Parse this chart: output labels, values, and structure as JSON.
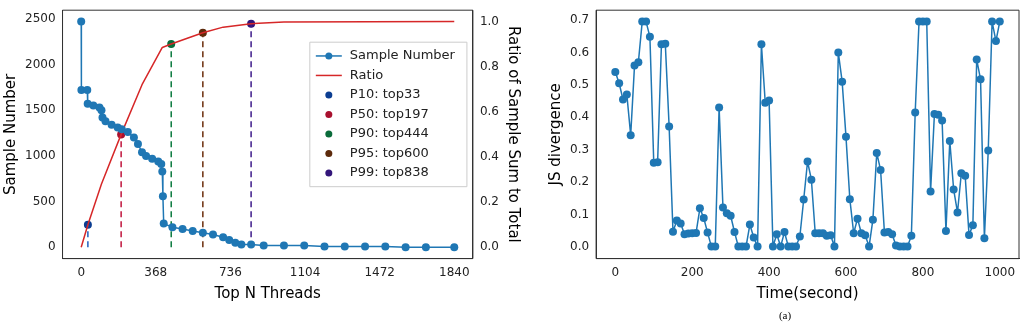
{
  "chart_data": [
    {
      "type": "line",
      "xlabel": "Top N Threads",
      "ylabel": "Sample Number",
      "y2label": "Ratio of Sample Sum to Total",
      "xlim": [
        -92,
        1932
      ],
      "xticks": [
        0,
        368,
        736,
        1104,
        1472,
        1840
      ],
      "ylim": [
        -123,
        2593
      ],
      "yticks": [
        0,
        500,
        1000,
        1500,
        2000,
        2500
      ],
      "y2lim": [
        -0.05,
        1.05
      ],
      "y2ticks": [
        {
          "value": 0,
          "label": "0.0"
        },
        0.2,
        0.4,
        0.6,
        0.8,
        {
          "value": 1,
          "label": "1.0"
        }
      ],
      "grid": false,
      "legend": "top right",
      "series": [
        {
          "name": "Sample Number",
          "color": "#1f77b4",
          "marker": "circle",
          "x": [
            0,
            1,
            30,
            32,
            60,
            90,
            100,
            105,
            120,
            150,
            180,
            200,
            230,
            260,
            280,
            300,
            320,
            350,
            380,
            395,
            400,
            403,
            407,
            450,
            500,
            550,
            600,
            650,
            700,
            730,
            760,
            790,
            838,
            900,
            1000,
            1100,
            1200,
            1300,
            1400,
            1500,
            1600,
            1700,
            1840
          ],
          "values": [
            2470,
            1720,
            1720,
            1570,
            1550,
            1530,
            1500,
            1420,
            1380,
            1340,
            1310,
            1290,
            1260,
            1200,
            1130,
            1040,
            1000,
            970,
            940,
            910,
            830,
            560,
            260,
            220,
            200,
            180,
            160,
            140,
            110,
            80,
            50,
            30,
            30,
            20,
            20,
            20,
            10,
            10,
            10,
            10,
            0,
            0,
            0
          ]
        },
        {
          "name": "Ratio",
          "color": "#d62728",
          "marker": "none",
          "axis": "y2",
          "x": [
            0,
            33,
            100,
            197,
            300,
            400,
            444,
            520,
            600,
            700,
            838,
            1000,
            1840
          ],
          "values": [
            0,
            0.1,
            0.28,
            0.5,
            0.72,
            0.885,
            0.9,
            0.925,
            0.95,
            0.975,
            0.99,
            0.998,
            1
          ]
        },
        {
          "type": "line",
          "color": "#1f5fbf",
          "marker": "none",
          "line_style": "dashed",
          "axis": "y2",
          "x": [
            33,
            33
          ],
          "values": [
            0,
            0.1
          ]
        },
        {
          "type": "line",
          "color": "#c0143c",
          "marker": "none",
          "line_style": "dashed",
          "axis": "y2",
          "x": [
            197,
            197
          ],
          "values": [
            0,
            0.5
          ]
        },
        {
          "type": "line",
          "color": "#0a7a3e",
          "marker": "none",
          "line_style": "dashed",
          "axis": "y2",
          "x": [
            444,
            444
          ],
          "values": [
            0,
            0.9
          ]
        },
        {
          "type": "line",
          "color": "#6b2c0a",
          "marker": "none",
          "line_style": "dashed",
          "axis": "y2",
          "x": [
            600,
            600
          ],
          "values": [
            0,
            0.95
          ]
        },
        {
          "type": "line",
          "color": "#3d1a8a",
          "marker": "none",
          "line_style": "dashed",
          "axis": "y2",
          "x": [
            838,
            838
          ],
          "values": [
            0,
            0.99
          ]
        },
        {
          "type": "scatter",
          "name": "P10: top33",
          "color": "#0b3d91",
          "marker": "circle",
          "axis": "y2",
          "x": [
            33
          ],
          "values": [
            0.1
          ]
        },
        {
          "type": "scatter",
          "name": "P50: top197",
          "color": "#a8102f",
          "marker": "circle",
          "axis": "y2",
          "x": [
            197
          ],
          "values": [
            0.5
          ]
        },
        {
          "type": "scatter",
          "name": "P90: top444",
          "color": "#0a6b3a",
          "marker": "circle",
          "axis": "y2",
          "x": [
            444
          ],
          "values": [
            0.9
          ]
        },
        {
          "type": "scatter",
          "name": "P95: top600",
          "color": "#5c2a0c",
          "marker": "circle",
          "axis": "y2",
          "x": [
            600
          ],
          "values": [
            0.95
          ]
        },
        {
          "type": "scatter",
          "name": "P99: top838",
          "color": "#33157a",
          "marker": "circle",
          "axis": "y2",
          "x": [
            838
          ],
          "values": [
            0.99
          ]
        }
      ]
    },
    {
      "type": "line",
      "xlabel": "Time(second)",
      "ylabel": "JS divergence",
      "xlim": [
        -50,
        1050
      ],
      "xticks": [
        0,
        200,
        400,
        600,
        800,
        1000
      ],
      "ylim": [
        -0.035,
        0.73
      ],
      "yticks": [
        {
          "value": 0,
          "label": "0.0"
        },
        0.1,
        0.2,
        0.3,
        0.4,
        0.5,
        0.6,
        0.7
      ],
      "grid": false,
      "annotations": [
        "(a)"
      ],
      "series": [
        {
          "color": "#1f77b4",
          "marker": "circle",
          "x": [
            0,
            10,
            20,
            30,
            40,
            50,
            60,
            70,
            80,
            90,
            100,
            110,
            120,
            130,
            140,
            150,
            160,
            170,
            180,
            190,
            200,
            210,
            220,
            230,
            240,
            250,
            260,
            270,
            280,
            290,
            300,
            310,
            320,
            330,
            340,
            350,
            360,
            370,
            380,
            390,
            400,
            410,
            420,
            430,
            440,
            450,
            460,
            470,
            480,
            490,
            500,
            510,
            520,
            530,
            540,
            550,
            560,
            570,
            580,
            590,
            600,
            610,
            620,
            630,
            640,
            650,
            660,
            670,
            680,
            690,
            700,
            710,
            720,
            730,
            740,
            750,
            760,
            770,
            780,
            790,
            800,
            810,
            820,
            830,
            840,
            850,
            860,
            870,
            880,
            890,
            900,
            910,
            920,
            930,
            940,
            950,
            960,
            970,
            980,
            990,
            1000
          ],
          "values": [
            0.54,
            0.505,
            0.455,
            0.47,
            0.345,
            0.56,
            0.57,
            0.695,
            0.695,
            0.648,
            0.26,
            0.262,
            0.625,
            0.627,
            0.372,
            0.048,
            0.082,
            0.073,
            0.04,
            0.042,
            0.043,
            0.044,
            0.12,
            0.09,
            0.045,
            0.002,
            0.002,
            0.43,
            0.122,
            0.105,
            0.097,
            0.047,
            0.002,
            0.002,
            0.002,
            0.07,
            0.03,
            0.002,
            0.625,
            0.445,
            0.452,
            0.002,
            0.04,
            0.002,
            0.047,
            0.002,
            0.002,
            0.002,
            0.033,
            0.147,
            0.264,
            0.208,
            0.043,
            0.043,
            0.043,
            0.035,
            0.037,
            0.002,
            0.6,
            0.51,
            0.34,
            0.148,
            0.043,
            0.088,
            0.043,
            0.037,
            0.002,
            0.085,
            0.29,
            0.238,
            0.045,
            0.047,
            0.04,
            0.005,
            0.002,
            0.002,
            0.002,
            0.035,
            0.415,
            0.695,
            0.695,
            0.695,
            0.172,
            0.41,
            0.408,
            0.39,
            0.05,
            0.327,
            0.178,
            0.107,
            0.228,
            0.22,
            0.038,
            0.068,
            0.578,
            0.517,
            0.028,
            0.298,
            0.695,
            0.635,
            0.695
          ]
        }
      ]
    }
  ]
}
